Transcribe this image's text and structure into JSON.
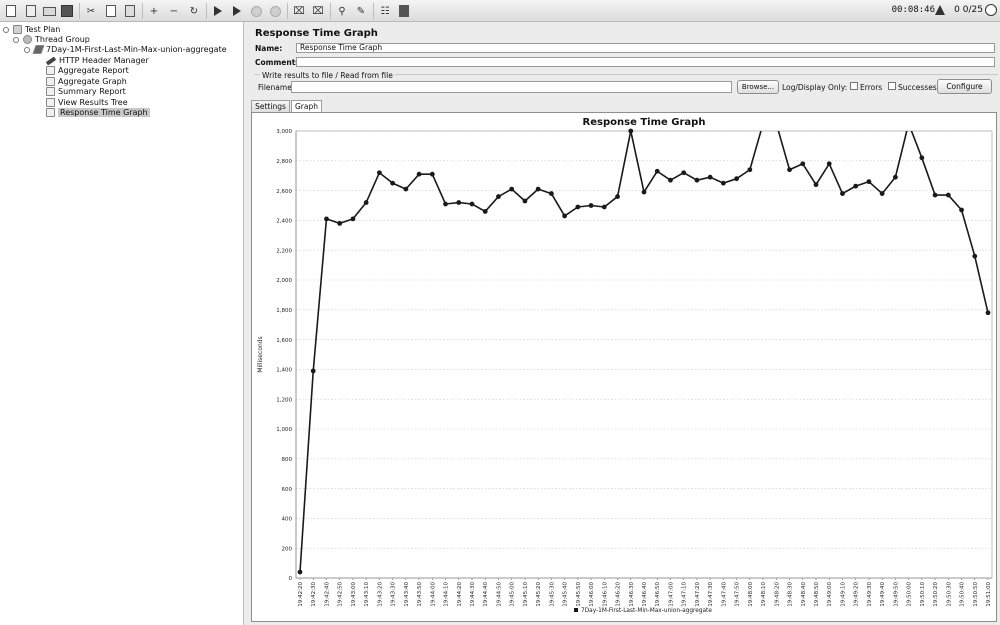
{
  "toolbar": {
    "buttons": [
      "new-icon",
      "templates-icon",
      "open-icon",
      "save-icon",
      "cut-icon",
      "copy-icon",
      "paste-icon",
      "expand-icon",
      "collapse-icon",
      "toggle-icon",
      "start-icon",
      "start-no-pauses-icon",
      "stop-icon",
      "shutdown-icon",
      "clear-icon",
      "clear-all-icon",
      "search-icon",
      "reset-search-icon",
      "function-helper-icon",
      "help-icon"
    ],
    "elapsed_time": "00:08:46",
    "warning_count": "0",
    "threads": "0/25"
  },
  "tree": {
    "nodes": [
      {
        "label": "Test Plan",
        "icon": "test-plan-icon",
        "level": 0,
        "expanded": true
      },
      {
        "label": "Thread Group",
        "icon": "thread-group-icon",
        "level": 1,
        "expanded": true
      },
      {
        "label": "7Day-1M-First-Last-Min-Max-union-aggregate",
        "icon": "sampler-icon",
        "level": 2,
        "expanded": true
      },
      {
        "label": "HTTP Header Manager",
        "icon": "config-tool-icon",
        "level": 3
      },
      {
        "label": "Aggregate Report",
        "icon": "listener-icon",
        "level": 3
      },
      {
        "label": "Aggregate Graph",
        "icon": "listener-icon",
        "level": 3
      },
      {
        "label": "Summary Report",
        "icon": "listener-icon",
        "level": 3
      },
      {
        "label": "View Results Tree",
        "icon": "listener-icon",
        "level": 3
      },
      {
        "label": "Response Time Graph",
        "icon": "listener-icon",
        "level": 3,
        "selected": true
      }
    ]
  },
  "panel": {
    "title": "Response Time Graph",
    "name_label": "Name:",
    "name_value": "Response Time Graph",
    "comments_label": "Comments:",
    "comments_value": "",
    "write_results_title": "Write results to file / Read from file",
    "filename_label": "Filename",
    "filename_value": "",
    "browse_label": "Browse...",
    "log_display_label": "Log/Display Only:",
    "errors_label": "Errors",
    "successes_label": "Successes",
    "configure_label": "Configure",
    "tabs": [
      "Settings",
      "Graph"
    ],
    "active_tab": "Graph"
  },
  "chart_data": {
    "type": "line",
    "title": "Response Time Graph",
    "ylabel": "Milliseconds",
    "xlabel": "",
    "ylim": [
      0,
      3000
    ],
    "ytick_step": 200,
    "grid": "horizontal-dotted",
    "legend_position": "bottom",
    "color": "#1a1a1a",
    "x": [
      "19:42:20",
      "19:42:30",
      "19:42:40",
      "19:42:50",
      "19:43:00",
      "19:43:10",
      "19:43:20",
      "19:43:30",
      "19:43:40",
      "19:43:50",
      "19:44:00",
      "19:44:10",
      "19:44:20",
      "19:44:30",
      "19:44:40",
      "19:44:50",
      "19:45:00",
      "19:45:10",
      "19:45:20",
      "19:45:30",
      "19:45:40",
      "19:45:50",
      "19:46:00",
      "19:46:10",
      "19:46:20",
      "19:46:30",
      "19:46:40",
      "19:46:50",
      "19:47:00",
      "19:47:10",
      "19:47:20",
      "19:47:30",
      "19:47:40",
      "19:47:50",
      "19:48:00",
      "19:48:10",
      "19:48:20",
      "19:48:30",
      "19:48:40",
      "19:48:50",
      "19:49:00",
      "19:49:10",
      "19:49:20",
      "19:49:30",
      "19:49:40",
      "19:49:50",
      "19:50:00",
      "19:50:10",
      "19:50:20",
      "19:50:30",
      "19:50:40",
      "19:50:50",
      "19:51:00"
    ],
    "series": [
      {
        "name": "7Day-1M-First-Last-Min-Max-union-aggregate",
        "values": [
          40,
          1390,
          2410,
          2380,
          2410,
          2520,
          2720,
          2650,
          2610,
          2710,
          2710,
          2510,
          2520,
          2510,
          2460,
          2560,
          2610,
          2530,
          2610,
          2580,
          2430,
          2490,
          2500,
          2490,
          2560,
          3000,
          2590,
          2730,
          2670,
          2720,
          2670,
          2690,
          2650,
          2680,
          2740,
          3050,
          3050,
          2740,
          2780,
          2640,
          2780,
          2580,
          2630,
          2660,
          2580,
          2690,
          3050,
          2820,
          2570,
          2570,
          2470,
          2160,
          1780
        ]
      }
    ]
  }
}
